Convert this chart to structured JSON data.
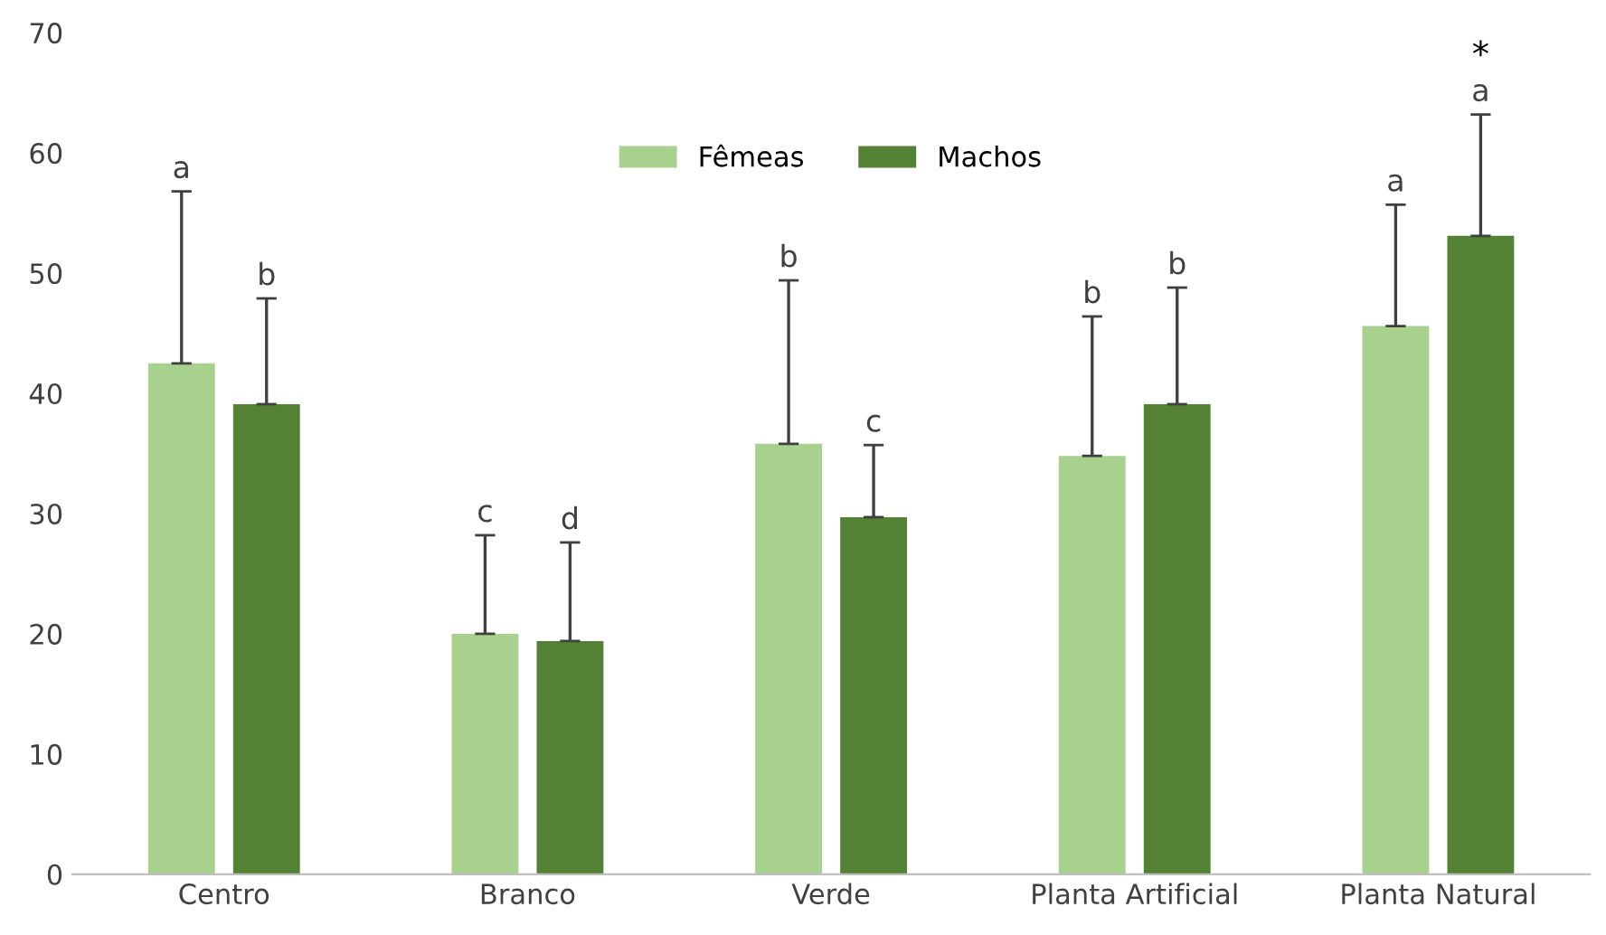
{
  "chart_data": {
    "type": "bar",
    "categories": [
      "Centro",
      "Branco",
      "Verde",
      "Planta Artificial",
      "Planta Natural"
    ],
    "series": [
      {
        "name": "Fêmeas",
        "color": "#a9d18e",
        "values": [
          42.5,
          20.0,
          35.8,
          34.8,
          45.6
        ],
        "errors": [
          [
            42.5,
            56.8
          ],
          [
            20.0,
            28.2
          ],
          [
            35.8,
            49.4
          ],
          [
            34.8,
            46.4
          ],
          [
            45.6,
            55.7
          ]
        ]
      },
      {
        "name": "Machos",
        "color": "#548235",
        "values": [
          39.1,
          19.4,
          29.7,
          39.1,
          53.1
        ],
        "errors": [
          [
            39.1,
            47.9
          ],
          [
            19.4,
            27.6
          ],
          [
            29.7,
            35.7
          ],
          [
            39.1,
            48.8
          ],
          [
            53.1,
            63.2
          ]
        ]
      }
    ],
    "ylim": [
      0,
      70
    ],
    "yticks": [
      0,
      10,
      20,
      30,
      40,
      50,
      60,
      70
    ],
    "grid": false,
    "legend": "top",
    "annotations": [
      "a",
      "c",
      "b",
      "b",
      "a",
      "b",
      "d",
      "c",
      "b",
      "a",
      "*"
    ]
  }
}
